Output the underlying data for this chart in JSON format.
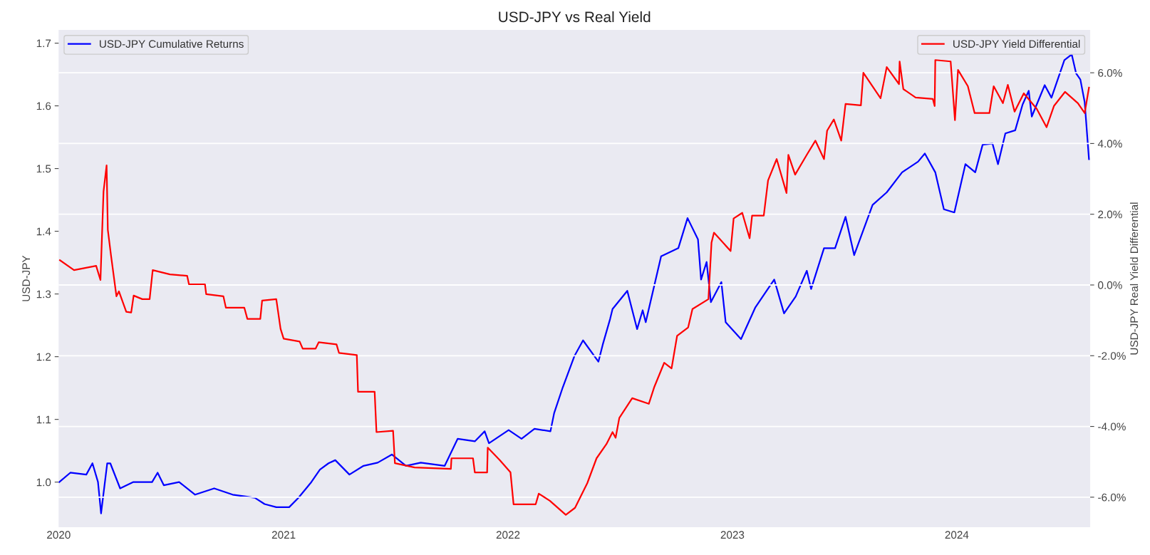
{
  "chart_data": {
    "type": "line",
    "title": "USD-JPY vs Real Yield",
    "ylabel": "USD-JPY",
    "y2label": "USD-JPY Real Yield Differential",
    "xlim": [
      "2020-01-01",
      "2024-08-05"
    ],
    "xticks": [
      "2020",
      "2021",
      "2022",
      "2023",
      "2024"
    ],
    "ylim": [
      0.928,
      1.721
    ],
    "yticks": [
      {
        "value": 1,
        "label": "1.0"
      },
      1.1,
      1.2,
      1.3,
      1.4,
      1.5,
      1.6,
      1.7
    ],
    "y2lim": [
      -6.85,
      7.21
    ],
    "y2ticks": [
      {
        "value": -6,
        "label": "-6.0%"
      },
      {
        "value": -4,
        "label": "-4.0%"
      },
      {
        "value": -2,
        "label": "-2.0%"
      },
      {
        "value": 0,
        "label": "0.0%"
      },
      {
        "value": 2,
        "label": "2.0%"
      },
      {
        "value": 4,
        "label": "4.0%"
      },
      {
        "value": 6,
        "label": "6.0%"
      }
    ],
    "grid": "y2",
    "legend": "top",
    "line_style": "solid",
    "marker": "none",
    "series": [
      {
        "name": "USD-JPY Cumulative Returns",
        "color": "#0000ff",
        "axis": "y",
        "x": [
          "2020-01-02",
          "2020-01-20",
          "2020-02-15",
          "2020-02-25",
          "2020-03-05",
          "2020-03-10",
          "2020-03-20",
          "2020-03-25",
          "2020-04-10",
          "2020-05-01",
          "2020-06-01",
          "2020-06-10",
          "2020-06-20",
          "2020-07-15",
          "2020-08-10",
          "2020-09-10",
          "2020-10-10",
          "2020-11-15",
          "2020-12-01",
          "2020-12-20",
          "2021-01-10",
          "2021-01-25",
          "2021-02-15",
          "2021-03-01",
          "2021-03-15",
          "2021-03-26",
          "2021-04-18",
          "2021-05-11",
          "2021-06-03",
          "2021-06-26",
          "2021-07-19",
          "2021-08-12",
          "2021-09-20",
          "2021-10-11",
          "2021-11-08",
          "2021-11-24",
          "2021-12-01",
          "2022-01-02",
          "2022-01-23",
          "2022-02-13",
          "2022-03-11",
          "2022-03-17",
          "2022-03-31",
          "2022-04-19",
          "2022-05-03",
          "2022-05-28",
          "2022-06-04",
          "2022-06-16",
          "2022-06-20",
          "2022-07-14",
          "2022-07-30",
          "2022-08-08",
          "2022-08-13",
          "2022-09-07",
          "2022-10-05",
          "2022-10-20",
          "2022-11-06",
          "2022-11-11",
          "2022-11-20",
          "2022-11-27",
          "2022-12-14",
          "2022-12-21",
          "2023-01-15",
          "2023-02-07",
          "2023-03-10",
          "2023-03-26",
          "2023-04-14",
          "2023-05-02",
          "2023-05-09",
          "2023-05-30",
          "2023-06-17",
          "2023-07-04",
          "2023-07-18",
          "2023-08-17",
          "2023-09-09",
          "2023-10-04",
          "2023-10-30",
          "2023-11-10",
          "2023-11-27",
          "2023-12-11",
          "2023-12-28",
          "2024-01-15",
          "2024-01-31",
          "2024-02-12",
          "2024-02-28",
          "2024-03-08",
          "2024-03-20",
          "2024-04-05",
          "2024-04-17",
          "2024-04-27",
          "2024-05-02",
          "2024-05-23",
          "2024-06-03",
          "2024-06-24",
          "2024-07-06",
          "2024-07-13",
          "2024-07-20",
          "2024-07-27",
          "2024-08-03"
        ],
        "values": [
          1.0,
          1.015,
          1.012,
          1.03,
          1.0,
          0.95,
          1.03,
          1.03,
          0.99,
          1.0,
          1.0,
          1.015,
          0.995,
          1.0,
          0.98,
          0.99,
          0.98,
          0.975,
          0.965,
          0.96,
          0.96,
          0.975,
          1.0,
          1.02,
          1.03,
          1.035,
          1.012,
          1.026,
          1.031,
          1.044,
          1.026,
          1.031,
          1.026,
          1.069,
          1.065,
          1.081,
          1.062,
          1.083,
          1.069,
          1.085,
          1.081,
          1.11,
          1.151,
          1.201,
          1.226,
          1.192,
          1.219,
          1.26,
          1.276,
          1.305,
          1.244,
          1.274,
          1.255,
          1.36,
          1.373,
          1.421,
          1.387,
          1.323,
          1.351,
          1.287,
          1.319,
          1.255,
          1.228,
          1.278,
          1.323,
          1.269,
          1.296,
          1.337,
          1.308,
          1.373,
          1.373,
          1.423,
          1.362,
          1.442,
          1.462,
          1.494,
          1.511,
          1.524,
          1.494,
          1.435,
          1.43,
          1.507,
          1.494,
          1.538,
          1.54,
          1.507,
          1.556,
          1.561,
          1.602,
          1.624,
          1.583,
          1.633,
          1.613,
          1.673,
          1.682,
          1.652,
          1.642,
          1.606,
          1.515
        ]
      },
      {
        "name": "USD-JPY Yield Differential",
        "color": "#ff0000",
        "axis": "y2",
        "x": [
          "2020-01-03",
          "2020-01-26",
          "2020-03-02",
          "2020-03-09",
          "2020-03-14",
          "2020-03-19",
          "2020-03-21",
          "2020-03-26",
          "2020-04-04",
          "2020-04-08",
          "2020-04-20",
          "2020-04-28",
          "2020-05-02",
          "2020-05-16",
          "2020-05-28",
          "2020-06-02",
          "2020-06-30",
          "2020-07-28",
          "2020-07-31",
          "2020-08-26",
          "2020-08-28",
          "2020-09-25",
          "2020-09-29",
          "2020-10-29",
          "2020-11-03",
          "2020-11-24",
          "2020-11-27",
          "2020-12-20",
          "2020-12-27",
          "2021-01-01",
          "2021-01-27",
          "2021-02-01",
          "2021-02-22",
          "2021-02-27",
          "2021-03-28",
          "2021-04-01",
          "2021-04-30",
          "2021-05-02",
          "2021-05-29",
          "2021-06-01",
          "2021-06-28",
          "2021-07-01",
          "2021-08-02",
          "2021-09-30",
          "2021-10-01",
          "2021-11-05",
          "2021-11-08",
          "2021-11-28",
          "2021-11-29",
          "2021-12-19",
          "2022-01-05",
          "2022-01-10",
          "2022-02-15",
          "2022-02-20",
          "2022-03-10",
          "2022-04-05",
          "2022-04-20",
          "2022-05-10",
          "2022-05-25",
          "2022-06-10",
          "2022-06-20",
          "2022-06-25",
          "2022-07-01",
          "2022-07-22",
          "2022-08-18",
          "2022-08-27",
          "2022-09-12",
          "2022-09-24",
          "2022-10-03",
          "2022-10-21",
          "2022-10-28",
          "2022-11-23",
          "2022-11-28",
          "2022-12-02",
          "2022-12-29",
          "2023-01-03",
          "2023-01-17",
          "2023-01-29",
          "2023-02-02",
          "2023-02-21",
          "2023-02-28",
          "2023-03-14",
          "2023-03-30",
          "2023-04-02",
          "2023-04-13",
          "2023-05-02",
          "2023-05-16",
          "2023-05-30",
          "2023-06-04",
          "2023-06-15",
          "2023-06-27",
          "2023-07-04",
          "2023-07-29",
          "2023-08-02",
          "2023-08-30",
          "2023-09-09",
          "2023-09-29",
          "2023-09-30",
          "2023-10-06",
          "2023-10-26",
          "2023-11-23",
          "2023-11-26",
          "2023-11-27",
          "2023-12-22",
          "2023-12-29",
          "2024-01-03",
          "2024-01-19",
          "2024-01-30",
          "2024-02-23",
          "2024-03-01",
          "2024-03-16",
          "2024-03-24",
          "2024-04-04",
          "2024-04-19",
          "2024-05-10",
          "2024-05-26",
          "2024-06-07",
          "2024-06-25",
          "2024-07-16",
          "2024-07-27",
          "2024-08-03"
        ],
        "values": [
          0.7,
          0.42,
          0.54,
          0.14,
          2.64,
          3.38,
          1.56,
          0.86,
          -0.32,
          -0.18,
          -0.76,
          -0.78,
          -0.3,
          -0.4,
          -0.4,
          0.42,
          0.3,
          0.26,
          0.02,
          0.02,
          -0.26,
          -0.32,
          -0.64,
          -0.64,
          -0.96,
          -0.96,
          -0.44,
          -0.4,
          -1.24,
          -1.52,
          -1.6,
          -1.8,
          -1.8,
          -1.62,
          -1.68,
          -1.92,
          -1.98,
          -3.02,
          -3.02,
          -4.16,
          -4.12,
          -5.04,
          -5.16,
          -5.2,
          -4.9,
          -4.9,
          -5.3,
          -5.3,
          -4.6,
          -4.96,
          -5.3,
          -6.2,
          -6.2,
          -5.9,
          -6.1,
          -6.5,
          -6.3,
          -5.6,
          -4.9,
          -4.5,
          -4.16,
          -4.32,
          -3.76,
          -3.2,
          -3.36,
          -2.88,
          -2.2,
          -2.36,
          -1.44,
          -1.2,
          -0.68,
          -0.4,
          1.2,
          1.48,
          0.96,
          1.88,
          2.04,
          1.32,
          1.96,
          1.96,
          2.96,
          3.56,
          2.6,
          3.68,
          3.12,
          3.68,
          4.08,
          3.56,
          4.36,
          4.68,
          4.08,
          5.12,
          5.08,
          6.0,
          5.28,
          6.16,
          5.68,
          6.32,
          5.54,
          5.3,
          5.26,
          5.06,
          6.36,
          6.32,
          4.66,
          6.08,
          5.62,
          4.86,
          4.86,
          5.62,
          5.14,
          5.66,
          4.9,
          5.42,
          4.98,
          4.46,
          5.06,
          5.46,
          5.14,
          4.86,
          5.58
        ]
      }
    ]
  }
}
